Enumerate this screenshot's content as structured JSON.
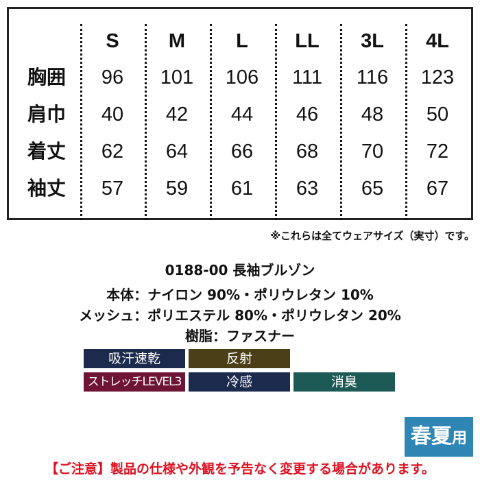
{
  "size_table": {
    "sizes": [
      "S",
      "M",
      "L",
      "LL",
      "3L",
      "4L"
    ],
    "rows": [
      {
        "label": "胸囲",
        "values": [
          "96",
          "101",
          "106",
          "111",
          "116",
          "123"
        ]
      },
      {
        "label": "肩巾",
        "values": [
          "40",
          "42",
          "44",
          "46",
          "48",
          "50"
        ]
      },
      {
        "label": "着丈",
        "values": [
          "62",
          "64",
          "66",
          "68",
          "70",
          "72"
        ]
      },
      {
        "label": "袖丈",
        "values": [
          "57",
          "59",
          "61",
          "63",
          "65",
          "67"
        ]
      }
    ]
  },
  "note": "※これらは全てウェアサイズ（実寸）です。",
  "spec": {
    "line1": "0188-00  長袖ブルゾン",
    "line2": "本体：ナイロン 90%・ポリウレタン 10%",
    "line3": "メッシュ：ポリエステル 80%・ポリウレタン 20%",
    "line4": "樹脂：ファスナー"
  },
  "features": [
    {
      "label": "吸汗速乾",
      "color": "#1c2a4e"
    },
    {
      "label": "反射",
      "color": "#4a3f17"
    },
    {
      "label": "ストレッチLEVEL3",
      "color": "#6e1434"
    },
    {
      "label": "冷感",
      "color": "#1c2a4e"
    },
    {
      "label": "消臭",
      "color": "#1d5a56"
    }
  ],
  "season_badge": {
    "main": "春夏",
    "suffix": "用",
    "color": "#2f86b4"
  },
  "warning": "【ご注意】製品の仕様や外観を予告なく変更する場合があります。"
}
